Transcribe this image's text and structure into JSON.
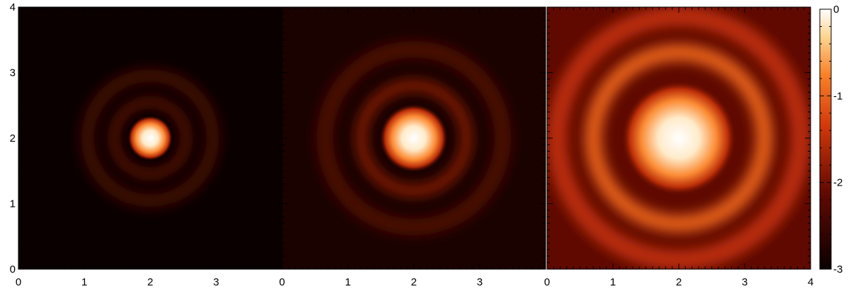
{
  "chart_data": {
    "type": "heatmap",
    "colormap": "hot (black-red-orange-white)",
    "colorbar": {
      "ticks": [
        "0",
        "-1",
        "-2",
        "-3"
      ],
      "range": [
        -3,
        0
      ],
      "scale": "log10"
    },
    "panels": [
      {
        "x_ticks": [
          "0",
          "1",
          "2",
          "3"
        ],
        "y_ticks": [
          "0",
          "1",
          "2",
          "3",
          "4"
        ],
        "xlim": [
          0,
          4
        ],
        "ylim": [
          0,
          4
        ],
        "peak_center": [
          2.0,
          2.0
        ],
        "core_radius": 0.25,
        "floor_level": -3.0,
        "rings": [
          {
            "radius": 0.55,
            "width": 0.1,
            "level": -1.9
          },
          {
            "radius": 0.95,
            "width": 0.2,
            "level": -2.4
          }
        ]
      },
      {
        "x_ticks": [
          "0",
          "1",
          "2",
          "3"
        ],
        "y_ticks": [],
        "xlim": [
          0,
          4
        ],
        "ylim": [
          0,
          4
        ],
        "peak_center": [
          2.0,
          2.0
        ],
        "core_radius": 0.38,
        "floor_level": -2.85,
        "rings": [
          {
            "radius": 0.8,
            "width": 0.16,
            "level": -1.8
          },
          {
            "radius": 1.35,
            "width": 0.25,
            "level": -2.3
          }
        ]
      },
      {
        "x_ticks": [
          "0",
          "1",
          "2",
          "3",
          "4"
        ],
        "y_ticks": [],
        "xlim": [
          0,
          4
        ],
        "ylim": [
          0,
          4
        ],
        "peak_center": [
          2.0,
          2.0
        ],
        "core_radius": 0.65,
        "floor_level": -2.15,
        "rings": [
          {
            "radius": 1.3,
            "width": 0.25,
            "level": -1.0
          },
          {
            "radius": 1.85,
            "width": 0.3,
            "level": -1.5
          }
        ]
      }
    ]
  }
}
